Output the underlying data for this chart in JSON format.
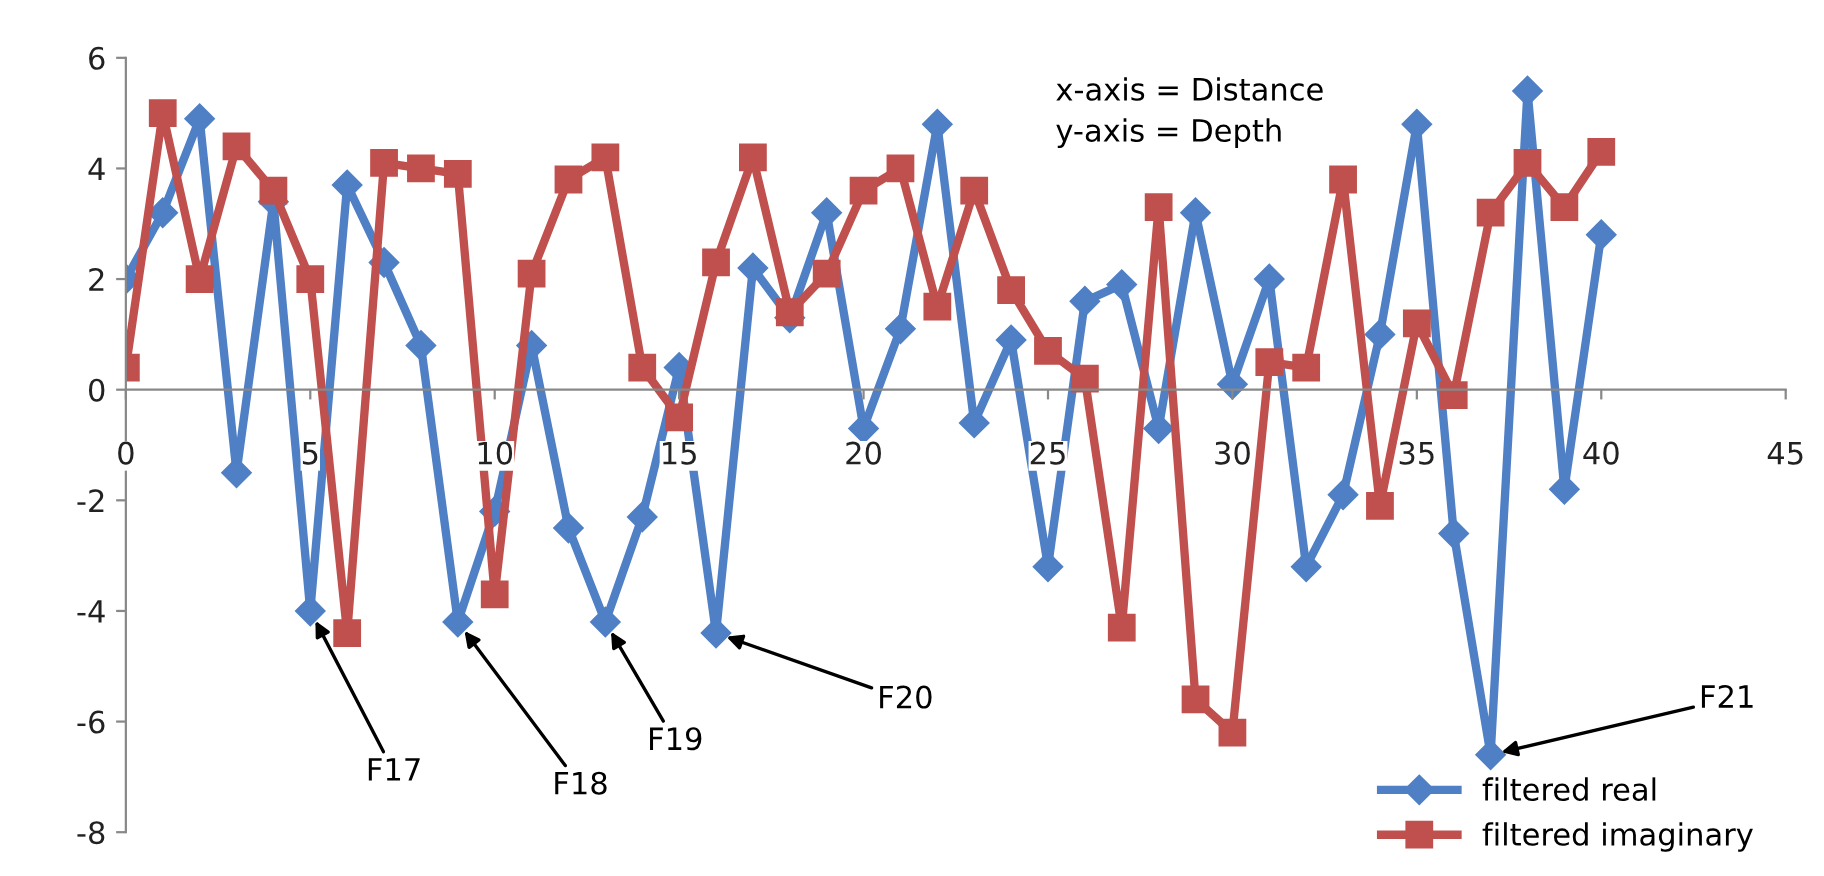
{
  "chart_data": {
    "type": "line",
    "x": [
      0,
      1,
      2,
      3,
      4,
      5,
      6,
      7,
      8,
      9,
      10,
      11,
      12,
      13,
      14,
      15,
      16,
      17,
      18,
      19,
      20,
      21,
      22,
      23,
      24,
      25,
      26,
      27,
      28,
      29,
      30,
      31,
      32,
      33,
      34,
      35,
      36,
      37,
      38,
      39,
      40
    ],
    "series": [
      {
        "name": "filtered real",
        "color": "#4f7fc4",
        "marker": "diamond",
        "values": [
          2,
          3.2,
          4.9,
          -1.5,
          3.4,
          -4.0,
          3.7,
          2.3,
          0.8,
          -4.2,
          -2.2,
          0.8,
          -2.5,
          -4.2,
          -2.3,
          0.4,
          -4.4,
          2.2,
          1.3,
          3.2,
          -0.7,
          1.1,
          4.8,
          -0.6,
          0.9,
          -3.2,
          1.6,
          1.9,
          -0.7,
          3.2,
          0.1,
          2.0,
          -3.2,
          -1.9,
          1.0,
          4.8,
          -2.6,
          -6.6,
          5.4,
          -1.8,
          2.8
        ]
      },
      {
        "name": "filtered imaginary",
        "color": "#c0504d",
        "marker": "square",
        "values": [
          0.4,
          5.0,
          2.0,
          4.4,
          3.6,
          2.0,
          -4.4,
          4.1,
          4.0,
          3.9,
          -3.7,
          2.1,
          3.8,
          4.2,
          0.4,
          -0.5,
          2.3,
          4.2,
          1.4,
          2.1,
          3.6,
          4.0,
          1.5,
          3.6,
          1.8,
          0.7,
          0.2,
          -4.3,
          3.3,
          -5.6,
          -6.2,
          0.5,
          0.4,
          3.8,
          -2.1,
          1.2,
          -0.1,
          3.2,
          4.1,
          3.3,
          4.3
        ]
      }
    ],
    "xlim": [
      0,
      45
    ],
    "xticks": [
      0,
      5,
      10,
      15,
      20,
      25,
      30,
      35,
      40,
      45
    ],
    "ylim": [
      -8,
      6
    ],
    "yticks": [
      -8,
      -6,
      -4,
      -2,
      0,
      2,
      4,
      6
    ],
    "grid": false,
    "legend": "bottom right",
    "annotations": [
      "x-axis = Distance\ny-axis = Depth",
      {
        "text": "F17",
        "x": 5,
        "y": -4.0
      },
      {
        "text": "F18",
        "x": 9,
        "y": -4.2
      },
      {
        "text": "F19",
        "x": 13,
        "y": -4.2
      },
      {
        "text": "F20",
        "x": 16,
        "y": -4.4
      },
      {
        "text": "F21",
        "x": 37,
        "y": -6.6
      }
    ]
  }
}
